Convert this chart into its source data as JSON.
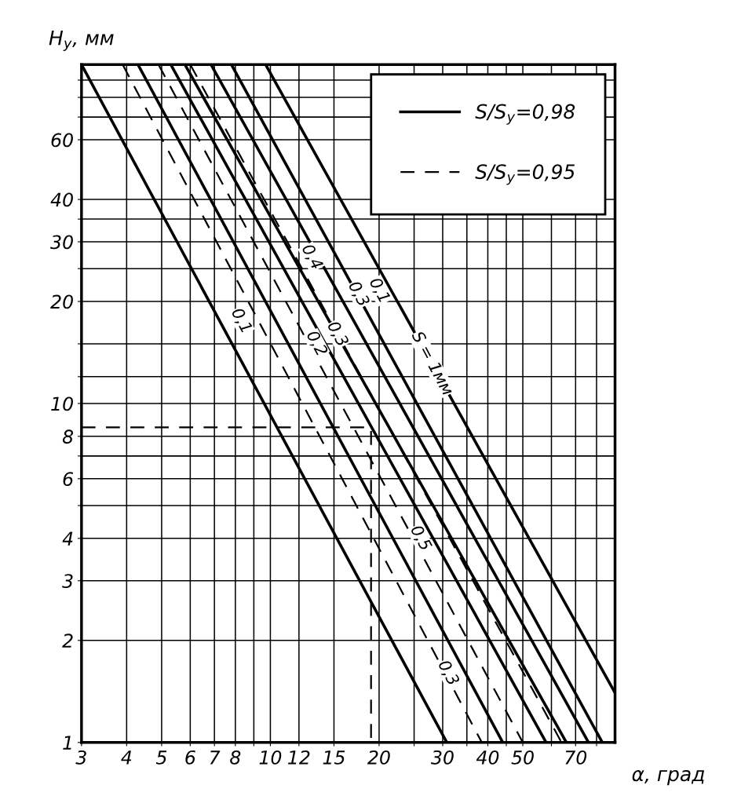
{
  "chart_data": {
    "type": "line",
    "xlabel": "α, град",
    "ylabel": "H$_{у}$, мм",
    "log": "xy",
    "grid": true,
    "legend": "top right",
    "xlim": [
      3,
      90
    ],
    "ylim": [
      1,
      100
    ],
    "xticks": [
      3,
      4,
      5,
      6,
      7,
      8,
      {
        "value": 9,
        "label": null
      },
      10,
      12,
      15,
      20,
      {
        "value": 25,
        "label": null
      },
      30,
      {
        "value": 35,
        "label": null
      },
      40,
      {
        "value": 45,
        "label": null
      },
      50,
      {
        "value": 60,
        "label": null
      },
      70,
      {
        "value": 80,
        "label": null
      }
    ],
    "yticks": [
      1,
      2,
      3,
      4,
      {
        "value": 5,
        "label": null
      },
      6,
      {
        "value": 7,
        "label": null
      },
      8,
      10,
      {
        "value": 12,
        "label": null
      },
      {
        "value": 15,
        "label": null
      },
      20,
      {
        "value": 25,
        "label": null
      },
      30,
      {
        "value": 35,
        "label": null
      },
      40,
      60,
      {
        "value": 70,
        "label": null
      },
      {
        "value": 80,
        "label": null
      },
      {
        "value": 90,
        "label": null
      }
    ],
    "series": [
      {
        "name": "S/S$_{у}$=0,98",
        "color": "#000000",
        "line_style": "solid",
        "x": [
          3.0,
          30.8
        ],
        "values": [
          100,
          1
        ]
      },
      {
        "color": "#000000",
        "line_style": "solid",
        "x": [
          4.3,
          44
        ],
        "values": [
          100,
          1
        ]
      },
      {
        "color": "#000000",
        "line_style": "solid",
        "x": [
          5.3,
          58
        ],
        "values": [
          100,
          1
        ]
      },
      {
        "color": "#000000",
        "line_style": "solid",
        "x": [
          5.8,
          66
        ],
        "values": [
          100,
          1
        ]
      },
      {
        "color": "#000000",
        "line_style": "solid",
        "x": [
          6.85,
          76
        ],
        "values": [
          100,
          1
        ]
      },
      {
        "color": "#000000",
        "line_style": "solid",
        "x": [
          7.8,
          83
        ],
        "values": [
          100,
          1
        ]
      },
      {
        "color": "#000000",
        "line_style": "solid",
        "x": [
          9.7,
          90
        ],
        "values": [
          100,
          1.4
        ]
      },
      {
        "name": "S/S$_{у}$=0,95",
        "color": "#000000",
        "line_style": "dashed",
        "x": [
          3.9,
          38.5
        ],
        "values": [
          100,
          1
        ]
      },
      {
        "color": "#000000",
        "line_style": "dashed",
        "x": [
          4.9,
          50
        ],
        "values": [
          100,
          1
        ]
      },
      {
        "color": "#000000",
        "line_style": "dashed",
        "x": [
          6.0,
          64
        ],
        "values": [
          100,
          1
        ]
      },
      {
        "color": "#000000",
        "line_style": "dashed",
        "x": [
          3,
          19,
          19
        ],
        "values": [
          8.5,
          8.5,
          1
        ]
      }
    ],
    "annotations": [
      {
        "text": "0,1",
        "x": 8.3,
        "y": 17.5
      },
      {
        "text": "0,2",
        "x": 13.4,
        "y": 15
      },
      {
        "text": "0,3",
        "x": 15.3,
        "y": 16
      },
      {
        "text": "0,4",
        "x": 13,
        "y": 27
      },
      {
        "text": "0,3",
        "x": 17.5,
        "y": 21
      },
      {
        "text": "0,1",
        "x": 20,
        "y": 21.5
      },
      {
        "text": "S = 1мм",
        "x": 28,
        "y": 13.1
      },
      {
        "text": "0,5",
        "x": 26,
        "y": 4
      },
      {
        "text": "0,3",
        "x": 31,
        "y": 1.6
      }
    ]
  }
}
